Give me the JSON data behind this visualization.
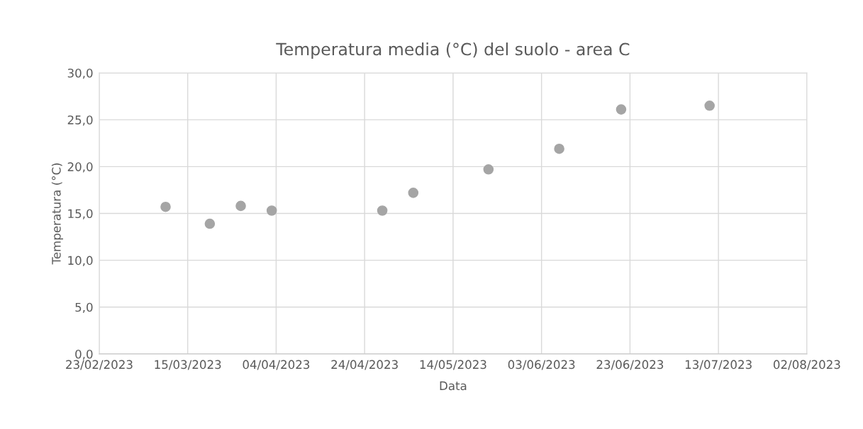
{
  "chart_data": {
    "type": "scatter",
    "title": "Temperatura media (°C) del suolo - area C",
    "xlabel": "Data",
    "ylabel": "Temperatura (°C)",
    "x": [
      "2023-03-10",
      "2023-03-20",
      "2023-03-27",
      "2023-04-03",
      "2023-04-28",
      "2023-05-05",
      "2023-05-22",
      "2023-06-07",
      "2023-06-21",
      "2023-07-11"
    ],
    "series": [
      {
        "color": "#a5a5a5",
        "values": [
          15.7,
          13.9,
          15.8,
          15.3,
          15.3,
          17.2,
          19.7,
          21.9,
          26.1,
          26.5
        ]
      }
    ],
    "xlim": [
      "2023-02-23",
      "2023-08-02"
    ],
    "xticks": [
      {
        "value": "2023-02-23",
        "label": "23/02/2023"
      },
      {
        "value": "2023-03-15",
        "label": "15/03/2023"
      },
      {
        "value": "2023-04-04",
        "label": "04/04/2023"
      },
      {
        "value": "2023-04-24",
        "label": "24/04/2023"
      },
      {
        "value": "2023-05-14",
        "label": "14/05/2023"
      },
      {
        "value": "2023-06-03",
        "label": "03/06/2023"
      },
      {
        "value": "2023-06-23",
        "label": "23/06/2023"
      },
      {
        "value": "2023-07-13",
        "label": "13/07/2023"
      },
      {
        "value": "2023-08-02",
        "label": "02/08/2023"
      }
    ],
    "ylim": [
      0,
      30
    ],
    "yticks": [
      {
        "value": 0,
        "label": "0,0"
      },
      {
        "value": 5,
        "label": "5,0"
      },
      {
        "value": 10,
        "label": "10,0"
      },
      {
        "value": 15,
        "label": "15,0"
      },
      {
        "value": 20,
        "label": "20,0"
      },
      {
        "value": 25,
        "label": "25,0"
      },
      {
        "value": 30,
        "label": "30,0"
      }
    ],
    "grid": true,
    "marker": "circle"
  }
}
